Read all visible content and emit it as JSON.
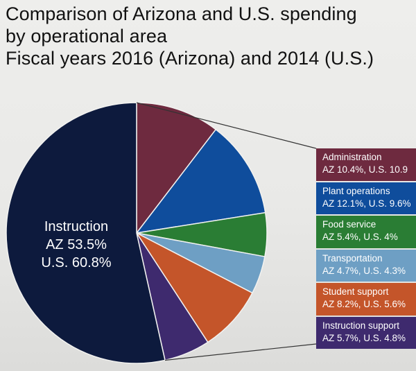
{
  "title": {
    "line1": "Comparison of Arizona and U.S. spending",
    "line2": "by operational area",
    "line3": "Fiscal years 2016 (Arizona) and 2014 (U.S.)"
  },
  "chart_data": {
    "type": "pie",
    "title": "Comparison of Arizona and U.S. spending by operational area, Fiscal years 2016 (Arizona) and 2014 (U.S.)",
    "slices": [
      {
        "name": "Instruction",
        "az": 53.5,
        "us": 60.8,
        "color": "#0d1a3d",
        "label": "Instruction",
        "label_az": "AZ 53.5%",
        "label_us": "U.S. 60.8%"
      },
      {
        "name": "Administration",
        "az": 10.4,
        "us": 10.9,
        "color": "#6e2a3f",
        "label": "Administration",
        "detail": "AZ 10.4%, U.S. 10.9"
      },
      {
        "name": "Plant operations",
        "az": 12.1,
        "us": 9.6,
        "color": "#0f4d9c",
        "label": "Plant operations",
        "detail": "AZ 12.1%, U.S. 9.6%"
      },
      {
        "name": "Food service",
        "az": 5.4,
        "us": 4.0,
        "color": "#2a7d34",
        "label": "Food service",
        "detail": "AZ 5.4%, U.S. 4%"
      },
      {
        "name": "Transportation",
        "az": 4.7,
        "us": 4.3,
        "color": "#6e9fc4",
        "label": "Transportation",
        "detail": "AZ 4.7%, U.S. 4.3%"
      },
      {
        "name": "Student support",
        "az": 8.2,
        "us": 5.6,
        "color": "#c4552a",
        "label": "Student support",
        "detail": "AZ 8.2%, U.S. 5.6%"
      },
      {
        "name": "Instruction support",
        "az": 5.7,
        "us": 4.8,
        "color": "#3e2a6e",
        "label": "Instruction support",
        "detail": "AZ 5.7%, U.S. 4.8%"
      }
    ],
    "legend_position": "right"
  }
}
